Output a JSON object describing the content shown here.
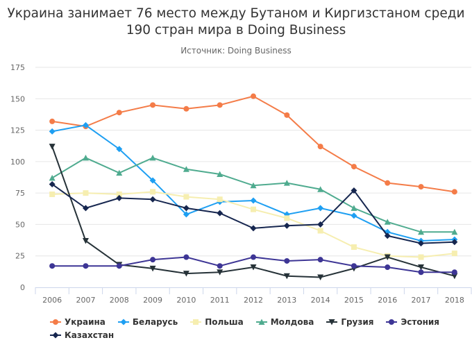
{
  "title_line1": "Украина занимает 76 место между Бутаном и Киргизстаном среди",
  "title_line2": "190 стран мира в Doing Business",
  "subtitle": "Источник: Doing Business",
  "chart_data": {
    "type": "line",
    "title": "Украина занимает 76 место между Бутаном и Киргизстаном среди 190 стран мира в Doing Business",
    "subtitle": "Источник: Doing Business",
    "xlabel": "",
    "ylabel": "",
    "ylim": [
      0,
      175
    ],
    "yticks": [
      0,
      25,
      50,
      75,
      100,
      125,
      150,
      175
    ],
    "grid": true,
    "legend_position": "bottom",
    "categories": [
      "2006",
      "2007",
      "2008",
      "2009",
      "2010",
      "2011",
      "2012",
      "2013",
      "2014",
      "2015",
      "2016",
      "2017",
      "2018"
    ],
    "series": [
      {
        "name": "Украина",
        "color": "#f47c48",
        "marker": "circle",
        "values": [
          132,
          128,
          139,
          145,
          142,
          145,
          152,
          137,
          112,
          96,
          83,
          80,
          76
        ]
      },
      {
        "name": "Беларусь",
        "color": "#1e9ff2",
        "marker": "diamond",
        "values": [
          124,
          129,
          110,
          85,
          58,
          68,
          69,
          58,
          63,
          57,
          44,
          37,
          38
        ]
      },
      {
        "name": "Польша",
        "color": "#f6eeb0",
        "marker": "square",
        "values": [
          74,
          75,
          74,
          76,
          72,
          70,
          62,
          55,
          45,
          32,
          25,
          24,
          27
        ]
      },
      {
        "name": "Молдова",
        "color": "#4fab8f",
        "marker": "triangle",
        "values": [
          87,
          103,
          91,
          103,
          94,
          90,
          81,
          83,
          78,
          63,
          52,
          44,
          44
        ]
      },
      {
        "name": "Грузия",
        "color": "#263238",
        "marker": "triangle-down",
        "values": [
          112,
          37,
          18,
          15,
          11,
          12,
          16,
          9,
          8,
          15,
          24,
          16,
          9
        ]
      },
      {
        "name": "Эстония",
        "color": "#3d3595",
        "marker": "circle",
        "values": [
          17,
          17,
          17,
          22,
          24,
          17,
          24,
          21,
          22,
          17,
          16,
          12,
          12
        ]
      },
      {
        "name": "Казахстан",
        "color": "#16264f",
        "marker": "diamond",
        "values": [
          82,
          63,
          71,
          70,
          63,
          59,
          47,
          49,
          50,
          77,
          41,
          35,
          36
        ]
      }
    ]
  }
}
